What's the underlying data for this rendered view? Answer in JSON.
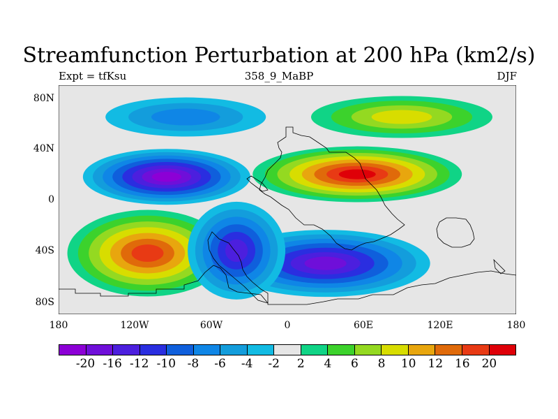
{
  "title": "Streamfunction Perturbation at 200 hPa (km2/s)",
  "subtitle_left": "Expt = tfKsu",
  "subtitle_center": "358_9_MaBP",
  "subtitle_right": "DJF",
  "chart_data": {
    "type": "heatmap",
    "projection": "cylindrical-equidistant",
    "variable": "Streamfunction Perturbation",
    "level_hpa": 200,
    "units": "km2/s",
    "season": "DJF",
    "lon_range": [
      -180,
      180
    ],
    "lat_range": [
      -90,
      90
    ],
    "y_ticks": [
      "80N",
      "40N",
      "0",
      "40S",
      "80S"
    ],
    "x_ticks": [
      "180",
      "120W",
      "60W",
      "0",
      "60E",
      "120E",
      "180"
    ],
    "colorbar": {
      "levels": [
        "-20",
        "-16",
        "-12",
        "-10",
        "-8",
        "-6",
        "-4",
        "-2",
        "2",
        "4",
        "6",
        "8",
        "10",
        "12",
        "16",
        "20"
      ],
      "colors": [
        "#8c00d6",
        "#6f0fd9",
        "#4c1fde",
        "#2a2ee0",
        "#0f5fdc",
        "#0f86e6",
        "#139ddc",
        "#12bbe3",
        "#e6e6e6",
        "#10d486",
        "#3cd22c",
        "#94d921",
        "#d8dd00",
        "#e8a60e",
        "#e06a0a",
        "#e83a14",
        "#df0008"
      ]
    },
    "features": [
      {
        "sign": "negative",
        "lon": -95,
        "lat": 18,
        "peak": -20,
        "description": "anticyclone-like low over Central America/Pacific"
      },
      {
        "sign": "positive",
        "lon": 55,
        "lat": 20,
        "peak": 20,
        "description": "maximum over Arabian region"
      },
      {
        "sign": "positive",
        "lon": -110,
        "lat": -42,
        "peak": 16,
        "description": "South Pacific high"
      },
      {
        "sign": "negative",
        "lon": 30,
        "lat": -50,
        "peak": -16,
        "description": "Southern Africa/Antarctic low"
      },
      {
        "sign": "negative",
        "lon": -40,
        "lat": -40,
        "peak": -12,
        "description": "South Atlantic low"
      },
      {
        "sign": "negative",
        "lon": -80,
        "lat": 65,
        "peak": -6,
        "description": "Arctic Canada low"
      },
      {
        "sign": "positive",
        "lon": 90,
        "lat": 65,
        "peak": 8,
        "description": "Siberian high"
      }
    ]
  }
}
